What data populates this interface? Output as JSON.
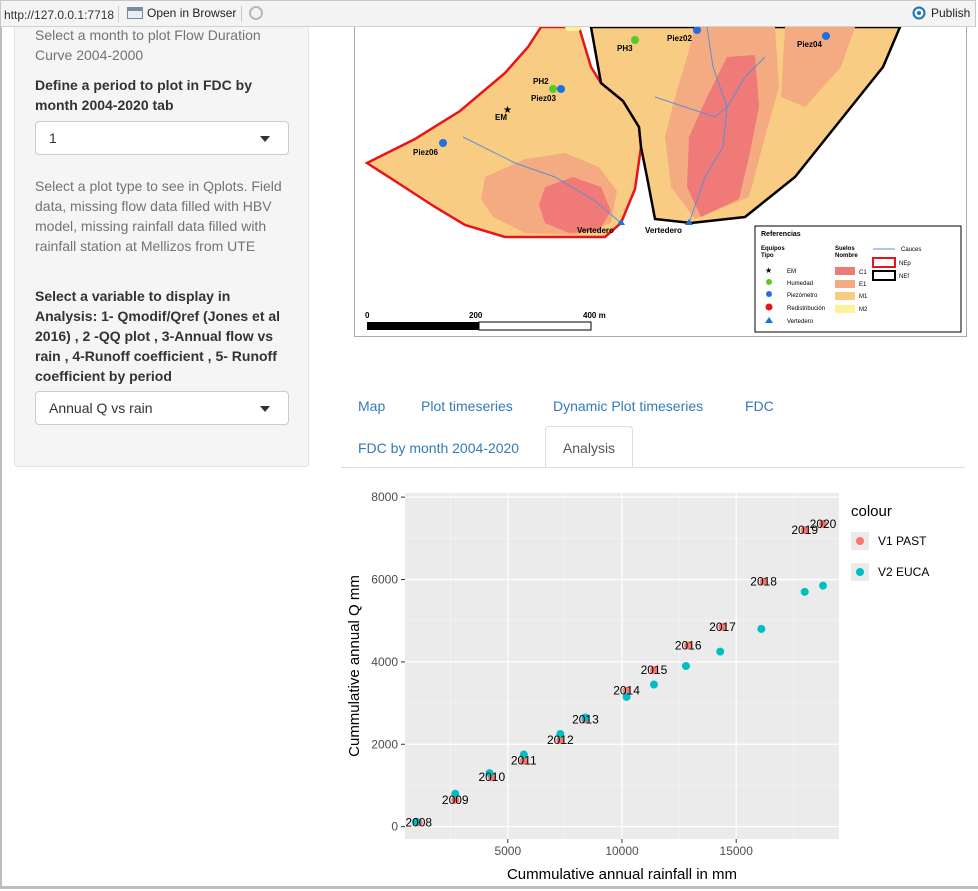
{
  "browser": {
    "url": "http://127.0.0.1:7718",
    "open_in_browser": "Open in Browser",
    "publish": "Publish"
  },
  "sidebar": {
    "month_help": "Select a month to plot Flow Duration Curve 2004-2000",
    "period_label": "Define a period to plot in FDC by month 2004-2020 tab",
    "period_value": "1",
    "plot_type_help": "Select a plot type to see in Qplots. Field data, missing flow data filled with HBV model, missing rainfall data filled with rainfall station at Mellizos from UTE",
    "variable_label": "Select a variable to display in Analysis: 1- Qmodif/Qref (Jones et al 2016) , 2 -QQ plot , 3-Annual flow vs rain , 4-Runoff coefficient , 5- Runoff coefficient by period",
    "variable_value": "Annual Q vs rain"
  },
  "map": {
    "point_labels": [
      "PH3",
      "Piez02",
      "Piez04",
      "PH2",
      "Piez03",
      "EM",
      "Piez06",
      "Vertedero",
      "Vertedero"
    ],
    "legend_title": "Referencias",
    "legend_equipos": "Equipos",
    "legend_tipo": "Tipo",
    "legend_suelos": "Suelos",
    "legend_nombre": "Nombre",
    "legend_cauces": "Cauces",
    "legend_tipo_items": [
      "EM",
      "Humedad",
      "Piezómetro",
      "Redistribución",
      "Vertedero"
    ],
    "legend_suelo_items": [
      "C1",
      "E1",
      "M1",
      "M2"
    ],
    "legend_boundary_items": [
      "NEp",
      "NEf"
    ],
    "scale_labels": [
      "0",
      "200",
      "400 m"
    ],
    "colors": {
      "C1": "#f07a78",
      "E1": "#f4ab82",
      "M1": "#f9cc83",
      "M2": "#fdf29a",
      "NEp": "#e8141a",
      "NEf": "#000000",
      "cauces": "#5b8fd6"
    }
  },
  "tabs": [
    {
      "label": "Map",
      "active": false
    },
    {
      "label": "Plot timeseries",
      "active": false
    },
    {
      "label": "Dynamic Plot timeseries",
      "active": false
    },
    {
      "label": "FDC",
      "active": false
    },
    {
      "label": "FDC by month 2004-2020",
      "active": false
    },
    {
      "label": "Analysis",
      "active": true
    }
  ],
  "chart_data": {
    "type": "scatter",
    "xlabel": "Cummulative annual rainfall in mm",
    "ylabel": "Cummulative annual Q mm",
    "xlim": [
      500,
      19500
    ],
    "ylim": [
      -300,
      8100
    ],
    "xticks": [
      5000,
      10000,
      15000
    ],
    "yticks": [
      0,
      2000,
      4000,
      6000,
      8000
    ],
    "grid": true,
    "legend_title": "colour",
    "legend_position": "right",
    "series": [
      {
        "name": "V1 PAST",
        "color": "#f8766d",
        "points": [
          [
            1100,
            100
          ],
          [
            2700,
            650
          ],
          [
            4300,
            1200
          ],
          [
            5700,
            1600
          ],
          [
            7300,
            2100
          ],
          [
            8400,
            2600
          ],
          [
            10200,
            3300
          ],
          [
            11400,
            3800
          ],
          [
            12900,
            4400
          ],
          [
            14400,
            4850
          ],
          [
            16200,
            5950
          ],
          [
            18000,
            7200
          ],
          [
            18800,
            7350
          ]
        ]
      },
      {
        "name": "V2 EUCA",
        "color": "#00bfc4",
        "points": [
          [
            1000,
            120
          ],
          [
            2700,
            800
          ],
          [
            4200,
            1300
          ],
          [
            5700,
            1750
          ],
          [
            7300,
            2250
          ],
          [
            8400,
            2650
          ],
          [
            10200,
            3150
          ],
          [
            11400,
            3450
          ],
          [
            12800,
            3900
          ],
          [
            14300,
            4250
          ],
          [
            16100,
            4800
          ],
          [
            18000,
            5700
          ],
          [
            18800,
            5850
          ]
        ]
      }
    ],
    "point_labels": [
      {
        "text": "2008",
        "x": 1100,
        "y": 100
      },
      {
        "text": "2009",
        "x": 2700,
        "y": 650
      },
      {
        "text": "2010",
        "x": 4300,
        "y": 1200
      },
      {
        "text": "2011",
        "x": 5700,
        "y": 1600
      },
      {
        "text": "2012",
        "x": 7300,
        "y": 2100
      },
      {
        "text": "2013",
        "x": 8400,
        "y": 2600
      },
      {
        "text": "2014",
        "x": 10200,
        "y": 3300
      },
      {
        "text": "2015",
        "x": 11400,
        "y": 3800
      },
      {
        "text": "2016",
        "x": 12900,
        "y": 4400
      },
      {
        "text": "2017",
        "x": 14400,
        "y": 4850
      },
      {
        "text": "2018",
        "x": 16200,
        "y": 5950
      },
      {
        "text": "2019",
        "x": 18000,
        "y": 7200
      },
      {
        "text": "2020",
        "x": 18800,
        "y": 7350
      }
    ]
  }
}
